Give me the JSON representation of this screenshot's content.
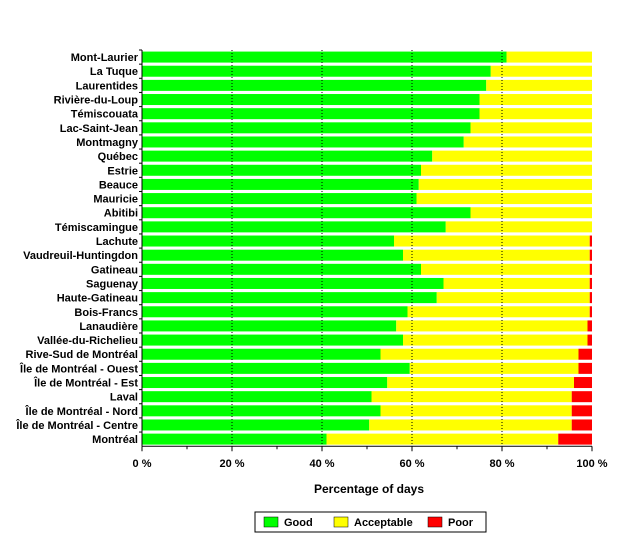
{
  "chart_data": {
    "type": "bar",
    "orientation": "horizontal",
    "stacked": true,
    "categories": [
      "Mont-Laurier",
      "La Tuque",
      "Laurentides",
      "Rivière-du-Loup",
      "Témiscouata",
      "Lac-Saint-Jean",
      "Montmagny",
      "Québec",
      "Estrie",
      "Beauce",
      "Mauricie",
      "Abitibi",
      "Témiscamingue",
      "Lachute",
      "Vaudreuil-Huntingdon",
      "Gatineau",
      "Saguenay",
      "Haute-Gatineau",
      "Bois-Francs",
      "Lanaudière",
      "Vallée-du-Richelieu",
      "Rive-Sud de Montréal",
      "Île de Montréal - Ouest",
      "Île de Montréal - Est",
      "Laval",
      "Île de Montréal - Nord",
      "Île de Montréal - Centre",
      "Montréal"
    ],
    "series": [
      {
        "name": "Good",
        "color": "#00ff00",
        "values": [
          81,
          77.5,
          76.5,
          75,
          75,
          73,
          71.5,
          64.5,
          62,
          61.5,
          61,
          73,
          67.5,
          56,
          58,
          62,
          67,
          65.5,
          59,
          56.5,
          58,
          53,
          59.5,
          54.5,
          51,
          53,
          50.5,
          41
        ]
      },
      {
        "name": "Acceptable",
        "color": "#ffff00",
        "values": [
          19,
          22.5,
          23.5,
          25,
          25,
          27,
          28.5,
          35.5,
          38,
          38.5,
          39,
          27,
          32.5,
          43.5,
          41.5,
          37.5,
          32.5,
          34,
          40.5,
          42.5,
          41,
          44,
          37.5,
          41.5,
          44.5,
          42.5,
          45,
          51.5
        ]
      },
      {
        "name": "Poor",
        "color": "#ff0000",
        "values": [
          0,
          0,
          0,
          0,
          0,
          0,
          0,
          0,
          0,
          0,
          0,
          0,
          0,
          0.5,
          0.5,
          0.5,
          0.5,
          0.5,
          0.5,
          1,
          1,
          3,
          3,
          4,
          4.5,
          4.5,
          4.5,
          7.5
        ]
      }
    ],
    "xlabel": "Percentage of days",
    "ylabel": "",
    "xlim": [
      0,
      100
    ],
    "xticks": [
      "0 %",
      "20 %",
      "40 %",
      "60 %",
      "80 %",
      "100 %"
    ],
    "grid": "vertical dashed",
    "legend_position": "bottom"
  }
}
